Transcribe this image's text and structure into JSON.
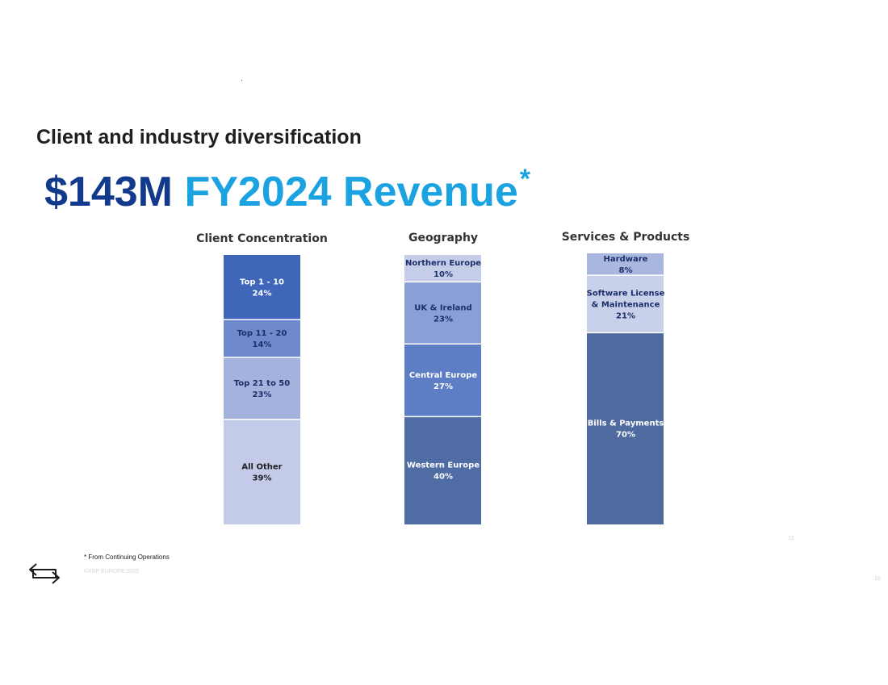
{
  "slide": {
    "subtitle": "Client and industry diversification",
    "headline_amount": "$143M",
    "headline_label": "FY2024 Revenue",
    "headline_marker": "*",
    "footnote": "* From Continuing Operations",
    "copyright": "©XBP EUROPE 2025",
    "page_number_a": "15",
    "page_number_b": "15",
    "logo_icon": "exchange-arrows-icon",
    "colors": {
      "amount": "#123a8c",
      "label": "#1aa3e0"
    }
  },
  "chart_data": [
    {
      "type": "bar",
      "stacked": true,
      "title": "Client Concentration",
      "segments": [
        {
          "label": "Top 1 - 10",
          "value": 24,
          "display": "24%",
          "color": "#3f66b9",
          "text_color": "#ffffff"
        },
        {
          "label": "Top 11 - 20",
          "value": 14,
          "display": "14%",
          "color": "#6e89cc",
          "text_color": "#1c2f6b"
        },
        {
          "label": "Top 21 to 50",
          "value": 23,
          "display": "23%",
          "color": "#a4b2de",
          "text_color": "#1c2f6b"
        },
        {
          "label": "All Other",
          "value": 39,
          "display": "39%",
          "color": "#c3cbe8",
          "text_color": "#1f1f1f"
        }
      ]
    },
    {
      "type": "bar",
      "stacked": true,
      "title": "Geography",
      "segments": [
        {
          "label": "Northern Europe",
          "value": 10,
          "display": "10%",
          "color": "#c6cde9",
          "text_color": "#1c2f6b"
        },
        {
          "label": "UK & Ireland",
          "value": 23,
          "display": "23%",
          "color": "#8a9fd6",
          "text_color": "#1c2f6b"
        },
        {
          "label": "Central Europe",
          "value": 27,
          "display": "27%",
          "color": "#5d7ec4",
          "text_color": "#ffffff"
        },
        {
          "label": "Western Europe",
          "value": 40,
          "display": "40%",
          "color": "#4f6ca5",
          "text_color": "#ffffff"
        }
      ]
    },
    {
      "type": "bar",
      "stacked": true,
      "title": "Services & Products",
      "segments": [
        {
          "label": "Hardware",
          "value": 8,
          "display": "8%",
          "color": "#a9b7df",
          "text_color": "#1c2f6b"
        },
        {
          "label": "Software License & Maintenance",
          "value": 21,
          "display": "21%",
          "color": "#c8d0ea",
          "text_color": "#1c2f6b"
        },
        {
          "label": "Bills & Payments",
          "value": 70,
          "display": "70%",
          "color": "#4f6a9e",
          "text_color": "#ffffff"
        }
      ]
    }
  ]
}
